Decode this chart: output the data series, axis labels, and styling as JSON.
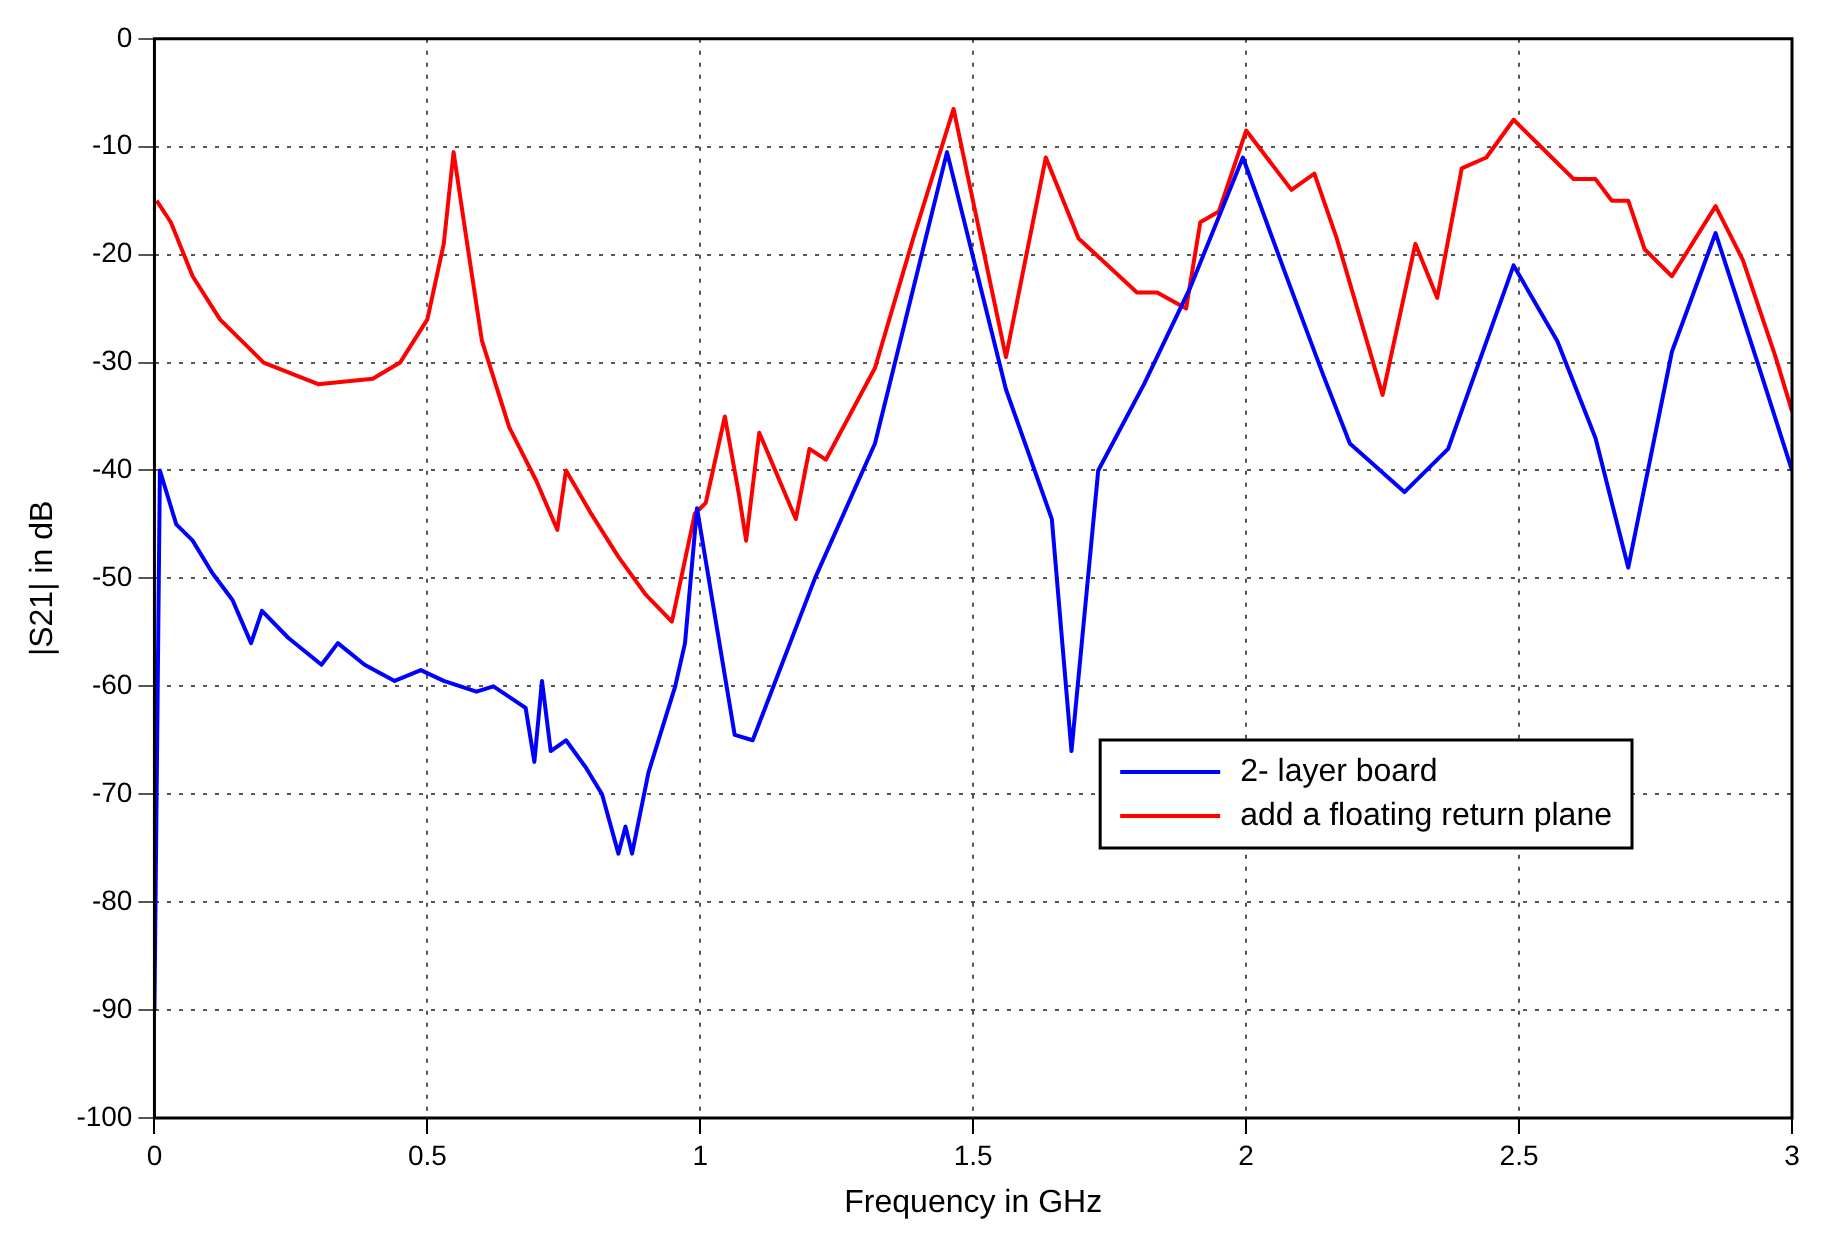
{
  "chart_data": {
    "type": "line",
    "xlabel": "Frequency in GHz",
    "ylabel": "|S21| in dB",
    "xlim": [
      0,
      3
    ],
    "ylim": [
      -100,
      0
    ],
    "xticks": [
      0,
      0.5,
      1,
      1.5,
      2,
      2.5,
      3
    ],
    "yticks": [
      -100,
      -90,
      -80,
      -70,
      -60,
      -50,
      -40,
      -30,
      -20,
      -10,
      0
    ],
    "grid": true,
    "legend": "bottom right",
    "line_style": "solid",
    "marker": "none",
    "series": [
      {
        "name": "2- layer board",
        "color": "#0000ff",
        "x": [
          0,
          0.01,
          0.04,
          0.07,
          0.106,
          0.143,
          0.177,
          0.197,
          0.245,
          0.306,
          0.336,
          0.385,
          0.44,
          0.488,
          0.53,
          0.59,
          0.621,
          0.68,
          0.696,
          0.71,
          0.726,
          0.754,
          0.79,
          0.82,
          0.85,
          0.863,
          0.875,
          0.905,
          0.954,
          0.972,
          0.994,
          1.063,
          1.096,
          1.21,
          1.32,
          1.452,
          1.56,
          1.644,
          1.68,
          1.729,
          1.813,
          1.898,
          1.994,
          2.07,
          2.14,
          2.19,
          2.29,
          2.37,
          2.49,
          2.57,
          2.64,
          2.7,
          2.78,
          2.86,
          2.94,
          3
        ],
        "values": [
          -90,
          -40,
          -45,
          -46.5,
          -49.5,
          -52,
          -56,
          -53,
          -55.5,
          -58,
          -56,
          -58,
          -59.5,
          -58.5,
          -59.5,
          -60.5,
          -60,
          -62,
          -67,
          -59.5,
          -66,
          -65,
          -67.5,
          -70,
          -75.5,
          -73,
          -75.5,
          -68,
          -60,
          -56,
          -43.5,
          -64.5,
          -65,
          -50,
          -37.5,
          -10.5,
          -32.5,
          -44.5,
          -66,
          -40,
          -32,
          -23,
          -11,
          -21.5,
          -31,
          -37.5,
          -42,
          -38,
          -21,
          -28,
          -37,
          -49,
          -29,
          -18,
          -30.5,
          -40
        ]
      },
      {
        "name": "add a floating return plane",
        "color": "#ff0000",
        "x": [
          0.004,
          0.03,
          0.07,
          0.12,
          0.2,
          0.3,
          0.4,
          0.45,
          0.5,
          0.53,
          0.548,
          0.57,
          0.6,
          0.65,
          0.7,
          0.738,
          0.754,
          0.8,
          0.85,
          0.9,
          0.948,
          0.99,
          1.01,
          1.045,
          1.07,
          1.084,
          1.108,
          1.175,
          1.2,
          1.23,
          1.32,
          1.39,
          1.464,
          1.56,
          1.633,
          1.693,
          1.8,
          1.837,
          1.89,
          1.916,
          1.95,
          2,
          2.083,
          2.125,
          2.166,
          2.25,
          2.31,
          2.35,
          2.395,
          2.44,
          2.49,
          2.54,
          2.6,
          2.64,
          2.67,
          2.7,
          2.73,
          2.78,
          2.86,
          2.91,
          2.97,
          3
        ],
        "values": [
          -15,
          -17,
          -22,
          -26,
          -30,
          -32,
          -31.5,
          -30,
          -26,
          -19,
          -10.5,
          -18,
          -28,
          -36,
          -41,
          -45.5,
          -40,
          -44,
          -48,
          -51.5,
          -54,
          -44,
          -43,
          -35,
          -42,
          -46.5,
          -36.5,
          -44.5,
          -38,
          -39,
          -30.5,
          -18.5,
          -6.5,
          -29.5,
          -11,
          -18.5,
          -23.5,
          -23.5,
          -25,
          -17,
          -16,
          -8.5,
          -14,
          -12.5,
          -18.5,
          -33,
          -19,
          -24,
          -12,
          -11,
          -7.5,
          -10,
          -13,
          -13,
          -15,
          -15,
          -19.5,
          -22,
          -15.5,
          -20.5,
          -29.5,
          -34.5
        ]
      }
    ]
  }
}
